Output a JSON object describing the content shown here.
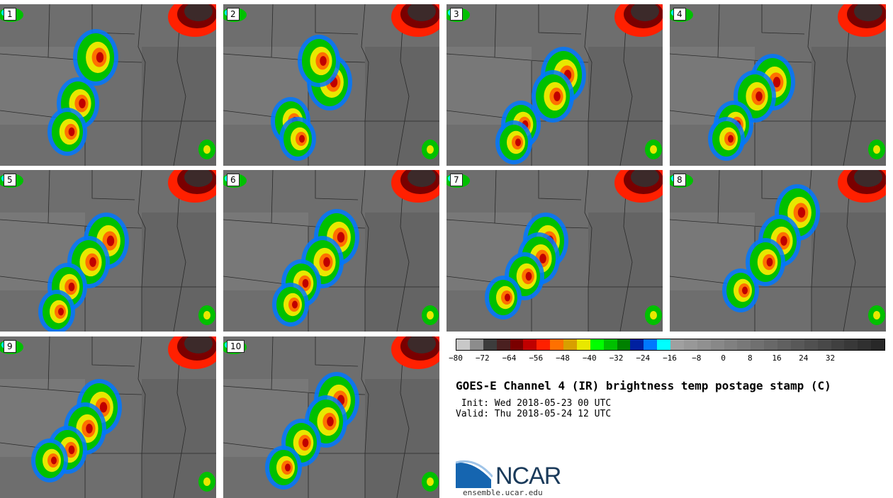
{
  "panels": [
    {
      "label": "1"
    },
    {
      "label": "2"
    },
    {
      "label": "3"
    },
    {
      "label": "4"
    },
    {
      "label": "5"
    },
    {
      "label": "6"
    },
    {
      "label": "7"
    },
    {
      "label": "8"
    },
    {
      "label": "9"
    },
    {
      "label": "10"
    }
  ],
  "colorbar": {
    "colors": [
      "#c8c8c8",
      "#8c8c8c",
      "#3c3c3c",
      "#4a2020",
      "#7a0000",
      "#c00000",
      "#ff2000",
      "#ff7000",
      "#d8a000",
      "#e8e800",
      "#00ff00",
      "#00c000",
      "#008000",
      "#0020a0",
      "#0078ff",
      "#00ffff",
      "#a0a0a0",
      "#989898",
      "#909090",
      "#888888",
      "#808080",
      "#787878",
      "#707070",
      "#686868",
      "#606060",
      "#585858",
      "#505050",
      "#484848",
      "#404040",
      "#383838",
      "#303030",
      "#282828"
    ],
    "ticks": [
      "−80",
      "−72",
      "−64",
      "−56",
      "−48",
      "−40",
      "−32",
      "−24",
      "−16",
      "−8",
      "0",
      "8",
      "16",
      "24",
      "32"
    ],
    "min": -80,
    "max": 48
  },
  "title": "GOES-E Channel 4 (IR) brightness temp postage stamp (C)",
  "init_line": " Init: Wed 2018-05-23 00 UTC",
  "valid_line": "Valid: Thu 2018-05-24 12 UTC",
  "logo": {
    "name": "NCAR",
    "url": "ensemble.ucar.edu"
  }
}
